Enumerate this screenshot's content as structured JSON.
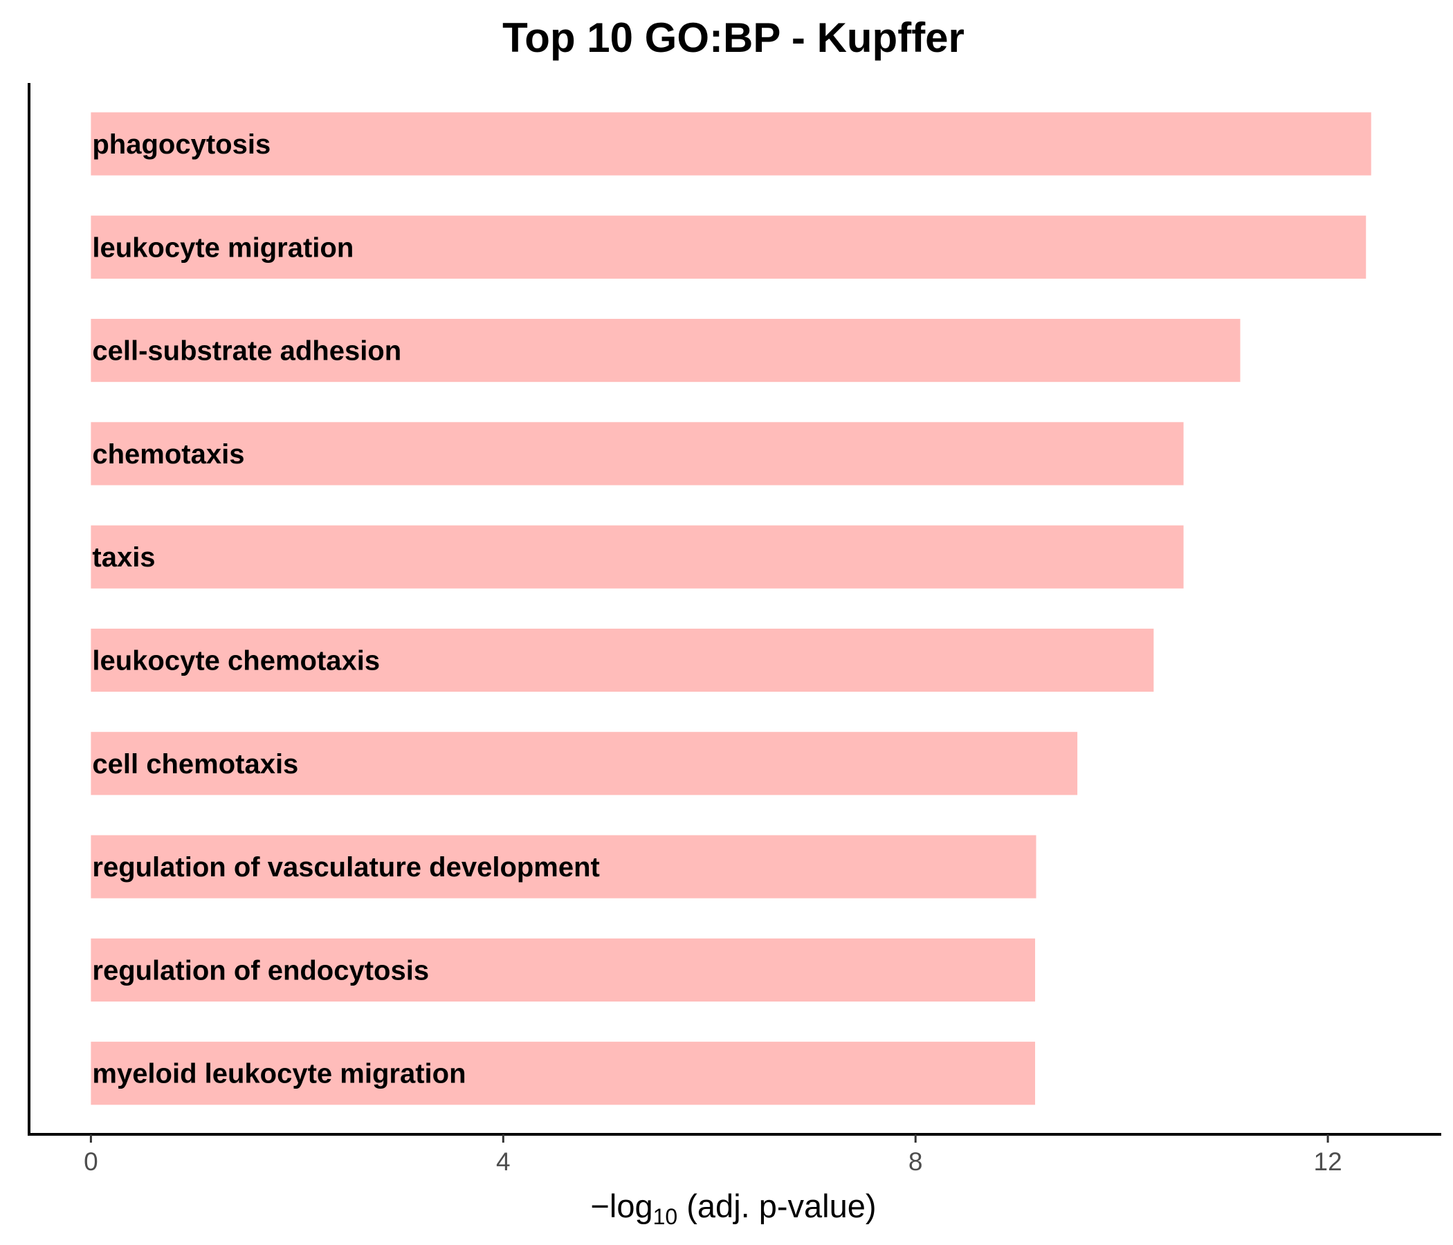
{
  "chart_data": {
    "type": "bar",
    "orientation": "horizontal",
    "title": "Top 10 GO:BP - Kupffer",
    "xlabel": {
      "prefix": "−log",
      "subscript": "10",
      "suffix": " (adj. p-value)"
    },
    "ylabel": "",
    "xlim": [
      -0.6,
      13.1
    ],
    "xticks": [
      0,
      4,
      8,
      12
    ],
    "categories": [
      "phagocytosis",
      "leukocyte migration",
      "cell-substrate adhesion",
      "chemotaxis",
      "taxis",
      "leukocyte chemotaxis",
      "cell chemotaxis",
      "regulation of vasculature development",
      "regulation of endocytosis",
      "myeloid leukocyte migration"
    ],
    "values": [
      12.42,
      12.37,
      11.15,
      10.6,
      10.6,
      10.31,
      9.57,
      9.17,
      9.16,
      9.16
    ],
    "bar_color": "#ffbcba",
    "grid": false,
    "legend": "none"
  }
}
